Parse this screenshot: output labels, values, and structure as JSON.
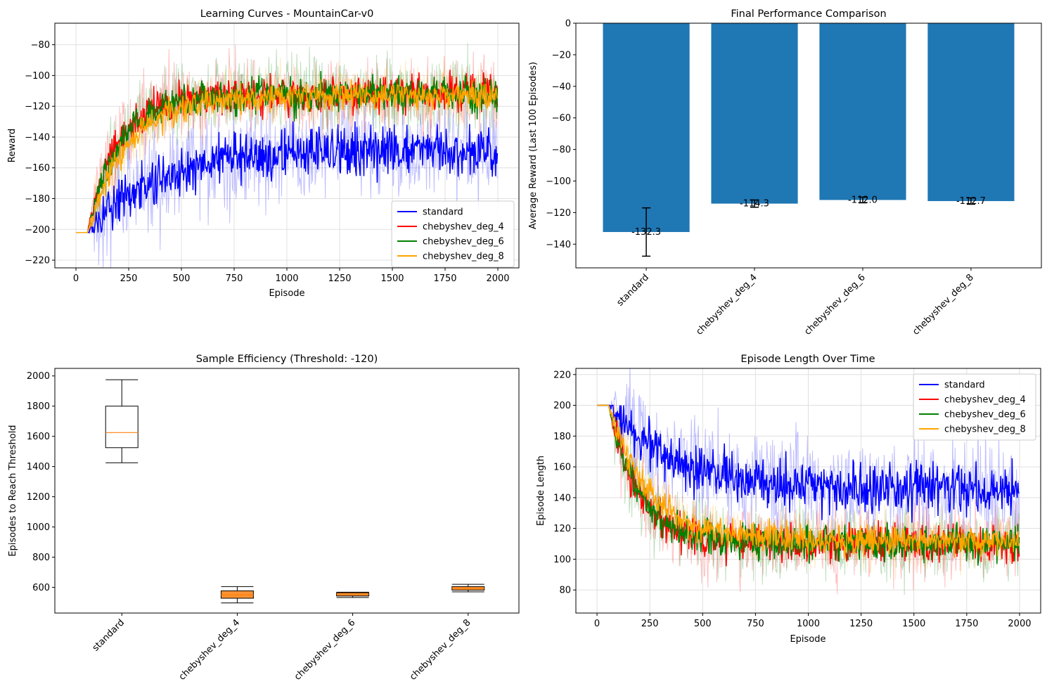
{
  "colors": {
    "standard": "#0000ff",
    "chebyshev_deg_4": "#ff0000",
    "chebyshev_deg_6": "#008000",
    "chebyshev_deg_8": "#ffa500",
    "bar": "#1f77b4",
    "median": "#ff7f0e"
  },
  "chart_data": [
    {
      "type": "line",
      "title": "Learning Curves - MountainCar-v0",
      "xlabel": "Episode",
      "ylabel": "Reward",
      "xlim": [
        -100,
        2100
      ],
      "ylim": [
        -225,
        -66
      ],
      "xticks": [
        0,
        250,
        500,
        750,
        1000,
        1250,
        1500,
        1750,
        2000
      ],
      "yticks": [
        -220,
        -200,
        -180,
        -160,
        -140,
        -120,
        -100,
        -80
      ],
      "grid": true,
      "legend": "lower-right",
      "series": [
        {
          "name": "standard",
          "start": -202,
          "end": -148,
          "spread": 13,
          "onset": 60,
          "plateau_ep": 320,
          "tau": 300
        },
        {
          "name": "chebyshev_deg_4",
          "start": -202,
          "end": -112,
          "spread": 9,
          "onset": 55,
          "plateau_ep": 60,
          "tau": 140
        },
        {
          "name": "chebyshev_deg_6",
          "start": -202,
          "end": -112,
          "spread": 9,
          "onset": 55,
          "plateau_ep": 60,
          "tau": 150
        },
        {
          "name": "chebyshev_deg_8",
          "start": -202,
          "end": -113,
          "spread": 7,
          "onset": 55,
          "plateau_ep": 60,
          "tau": 190
        }
      ]
    },
    {
      "type": "bar",
      "title": "Final Performance Comparison",
      "xlabel": "",
      "ylabel": "Average Reward (Last 100 Episodes)",
      "categories": [
        "standard",
        "chebyshev_deg_4",
        "chebyshev_deg_6",
        "chebyshev_deg_8"
      ],
      "values": [
        -132.3,
        -114.3,
        -112.0,
        -112.7
      ],
      "errors": [
        15.3,
        2.3,
        1.8,
        2.0
      ],
      "labels": [
        "-132.3",
        "-114.3",
        "-112.0",
        "-112.7"
      ],
      "ylim": [
        -155,
        0
      ],
      "yticks": [
        -140,
        -120,
        -100,
        -80,
        -60,
        -40,
        -20,
        0
      ]
    },
    {
      "type": "box",
      "title": "Sample Efficiency (Threshold: -120)",
      "xlabel": "",
      "ylabel": "Episodes to Reach Threshold",
      "categories": [
        "standard",
        "chebyshev_deg_4",
        "chebyshev_deg_6",
        "chebyshev_deg_8"
      ],
      "boxes": [
        {
          "min": 1425,
          "q1": 1525,
          "median": 1625,
          "q3": 1800,
          "max": 1975
        },
        {
          "min": 497,
          "q1": 528,
          "median": 550,
          "q3": 577,
          "max": 605
        },
        {
          "min": 533,
          "q1": 543,
          "median": 556,
          "q3": 565,
          "max": 568
        },
        {
          "min": 570,
          "q1": 582,
          "median": 595,
          "q3": 605,
          "max": 620
        }
      ],
      "ylim": [
        430,
        2050
      ],
      "yticks": [
        600,
        800,
        1000,
        1200,
        1400,
        1600,
        1800,
        2000
      ]
    },
    {
      "type": "line",
      "title": "Episode Length Over Time",
      "xlabel": "Episode",
      "ylabel": "Episode Length",
      "xlim": [
        -100,
        2100
      ],
      "ylim": [
        65,
        224
      ],
      "xticks": [
        0,
        250,
        500,
        750,
        1000,
        1250,
        1500,
        1750,
        2000
      ],
      "yticks": [
        80,
        100,
        120,
        140,
        160,
        180,
        200,
        220
      ],
      "grid": true,
      "legend": "top-right",
      "series": [
        {
          "name": "standard",
          "start": 200,
          "end": 145,
          "spread": 13,
          "onset": 60,
          "plateau_ep": 320,
          "tau": 300
        },
        {
          "name": "chebyshev_deg_4",
          "start": 200,
          "end": 110,
          "spread": 9,
          "onset": 55,
          "plateau_ep": 60,
          "tau": 140
        },
        {
          "name": "chebyshev_deg_6",
          "start": 200,
          "end": 110,
          "spread": 9,
          "onset": 55,
          "plateau_ep": 60,
          "tau": 150
        },
        {
          "name": "chebyshev_deg_8",
          "start": 200,
          "end": 112,
          "spread": 7,
          "onset": 55,
          "plateau_ep": 60,
          "tau": 190
        }
      ]
    }
  ]
}
